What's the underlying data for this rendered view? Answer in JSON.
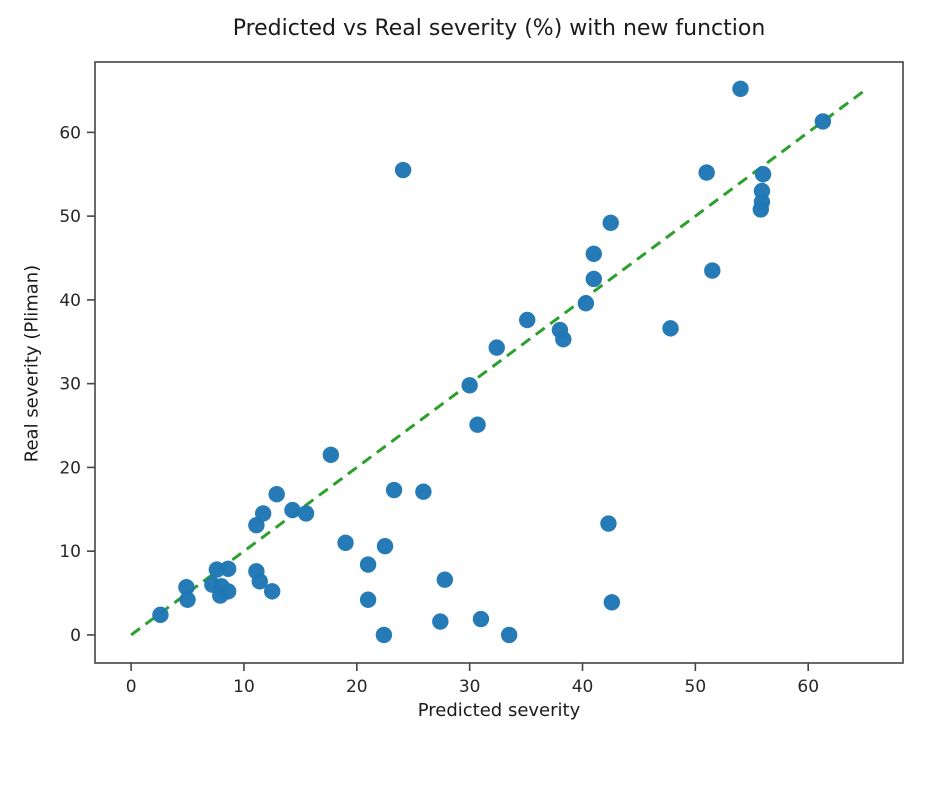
{
  "chart_data": {
    "type": "scatter",
    "title": "Predicted vs Real severity (%) with new function",
    "xlabel": "Predicted severity",
    "ylabel": "Real severity (Pliman)",
    "xlim": [
      -3.2,
      68.4
    ],
    "ylim": [
      -3.35,
      68.4
    ],
    "xticks": [
      0,
      10,
      20,
      30,
      40,
      50,
      60
    ],
    "yticks": [
      0,
      10,
      20,
      30,
      40,
      50,
      60
    ],
    "grid": false,
    "legend": "none",
    "point_color": "#1f77b4",
    "point_radius": 8.2,
    "spine_color": "#444444",
    "series": [
      {
        "name": "samples",
        "points": [
          [
            2.6,
            2.4
          ],
          [
            4.9,
            5.7
          ],
          [
            5.0,
            4.2
          ],
          [
            7.2,
            6.0
          ],
          [
            7.6,
            7.8
          ],
          [
            7.9,
            4.7
          ],
          [
            8.0,
            5.8
          ],
          [
            8.6,
            7.9
          ],
          [
            8.6,
            5.2
          ],
          [
            11.1,
            7.6
          ],
          [
            11.4,
            6.4
          ],
          [
            12.5,
            5.2
          ],
          [
            11.1,
            13.1
          ],
          [
            11.7,
            14.5
          ],
          [
            12.9,
            16.8
          ],
          [
            14.3,
            14.9
          ],
          [
            15.5,
            14.5
          ],
          [
            17.7,
            21.5
          ],
          [
            19.0,
            11.0
          ],
          [
            21.0,
            8.4
          ],
          [
            21.0,
            4.2
          ],
          [
            22.4,
            0.0
          ],
          [
            22.5,
            10.6
          ],
          [
            23.3,
            17.3
          ],
          [
            24.1,
            55.5
          ],
          [
            25.9,
            17.1
          ],
          [
            27.4,
            1.6
          ],
          [
            27.8,
            6.6
          ],
          [
            30.0,
            29.8
          ],
          [
            30.7,
            25.1
          ],
          [
            31.0,
            1.9
          ],
          [
            32.4,
            34.3
          ],
          [
            33.5,
            0.0
          ],
          [
            35.1,
            37.6
          ],
          [
            38.0,
            36.4
          ],
          [
            38.3,
            35.3
          ],
          [
            40.3,
            39.6
          ],
          [
            41.0,
            42.5
          ],
          [
            41.0,
            45.5
          ],
          [
            42.3,
            13.3
          ],
          [
            42.5,
            49.2
          ],
          [
            42.6,
            3.9
          ],
          [
            47.8,
            36.6
          ],
          [
            51.0,
            55.2
          ],
          [
            51.5,
            43.5
          ],
          [
            54.0,
            65.2
          ],
          [
            55.8,
            50.8
          ],
          [
            55.9,
            51.7
          ],
          [
            55.9,
            53.0
          ],
          [
            56.0,
            55.0
          ],
          [
            61.3,
            61.3
          ]
        ]
      }
    ],
    "identity_line": {
      "name": "identity-line",
      "x": [
        0,
        65
      ],
      "y": [
        0,
        65
      ],
      "color": "#2ca02c",
      "style": "dashed",
      "width": 3,
      "dash": "11 7"
    }
  }
}
